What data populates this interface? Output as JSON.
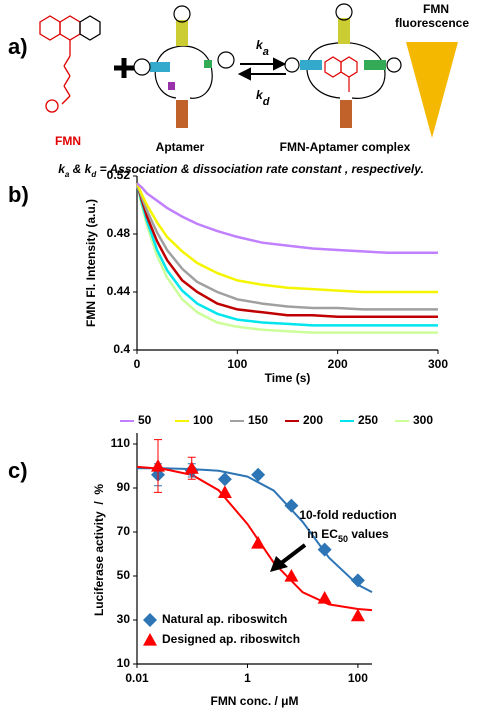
{
  "figure_a": {
    "label": "a)",
    "fmn": "FMN",
    "aptamer": "Aptamer",
    "complex": "FMN-Aptamer complex",
    "fluorescence": [
      "FMN",
      "fluorescence"
    ],
    "ka": [
      "k",
      "a"
    ],
    "kd": [
      "k",
      "d"
    ],
    "footnote": [
      "k",
      "a",
      " & ",
      "k",
      "d",
      " = Association & dissociation rate constant , respectively."
    ]
  },
  "chart_data": [
    {
      "type": "line",
      "panel_label": "b)",
      "xlabel": "Time (s)",
      "ylabel": "FMN Fl. Intensity (a.u.)",
      "x": [
        0,
        5,
        10,
        20,
        30,
        45,
        60,
        80,
        100,
        125,
        150,
        175,
        200,
        225,
        250,
        275,
        300
      ],
      "xlim": [
        0,
        300
      ],
      "xticks": [
        0,
        100,
        200,
        300
      ],
      "ylim": [
        0.4,
        0.52
      ],
      "yticks": [
        0.4,
        0.44,
        0.48,
        0.52
      ],
      "legend": "bottom",
      "series": [
        {
          "name": "50",
          "color": "#c080ff",
          "values": [
            0.515,
            0.512,
            0.508,
            0.503,
            0.498,
            0.492,
            0.487,
            0.482,
            0.478,
            0.474,
            0.472,
            0.47,
            0.469,
            0.468,
            0.467,
            0.467,
            0.467
          ]
        },
        {
          "name": "100",
          "color": "#f5f500",
          "values": [
            0.515,
            0.507,
            0.5,
            0.488,
            0.478,
            0.468,
            0.46,
            0.453,
            0.448,
            0.445,
            0.443,
            0.442,
            0.441,
            0.44,
            0.44,
            0.44,
            0.44
          ]
        },
        {
          "name": "150",
          "color": "#a0a0a0",
          "values": [
            0.515,
            0.505,
            0.496,
            0.481,
            0.469,
            0.456,
            0.447,
            0.44,
            0.435,
            0.432,
            0.43,
            0.429,
            0.429,
            0.428,
            0.428,
            0.428,
            0.428
          ]
        },
        {
          "name": "200",
          "color": "#c00000",
          "values": [
            0.515,
            0.503,
            0.492,
            0.475,
            0.462,
            0.448,
            0.44,
            0.432,
            0.428,
            0.426,
            0.424,
            0.424,
            0.423,
            0.423,
            0.423,
            0.423,
            0.423
          ]
        },
        {
          "name": "250",
          "color": "#00e5ee",
          "values": [
            0.515,
            0.501,
            0.489,
            0.469,
            0.455,
            0.441,
            0.432,
            0.425,
            0.421,
            0.419,
            0.418,
            0.417,
            0.417,
            0.417,
            0.417,
            0.417,
            0.417
          ]
        },
        {
          "name": "300",
          "color": "#ccff99",
          "values": [
            0.515,
            0.499,
            0.486,
            0.465,
            0.45,
            0.435,
            0.426,
            0.419,
            0.416,
            0.414,
            0.413,
            0.412,
            0.412,
            0.412,
            0.412,
            0.412,
            0.412
          ]
        }
      ]
    },
    {
      "type": "scatter",
      "panel_label": "c)",
      "xlabel": "FMN conc. / μM",
      "ylabel": "Luciferase activity  /  %",
      "x_scale": "log",
      "xlim": [
        0.01,
        180
      ],
      "xticks": [
        0.01,
        1,
        100
      ],
      "ylim": [
        10,
        115
      ],
      "yticks": [
        10,
        30,
        50,
        70,
        90,
        110
      ],
      "x": [
        0.024,
        0.098,
        0.39,
        1.56,
        6.25,
        25,
        100
      ],
      "fit_x": [
        0.01,
        0.03,
        0.1,
        0.3,
        1,
        3,
        10,
        30,
        100,
        180
      ],
      "annotation": [
        "10-fold reduction",
        "in EC",
        "50",
        " values"
      ],
      "legend": "lower left",
      "series": [
        {
          "name": "Natural ap. riboswitch",
          "color": "#2e75b6",
          "marker": "diamond",
          "values": [
            96,
            98,
            94,
            96,
            82,
            62,
            48
          ],
          "errors": [
            5,
            3,
            null,
            null,
            null,
            null,
            null
          ],
          "fit_values": [
            99,
            99,
            98.6,
            97.8,
            95.2,
            88.8,
            74.6,
            58.3,
            46.0,
            42.7
          ]
        },
        {
          "name": "Designed ap. riboswitch",
          "color": "#ff0000",
          "marker": "triangle",
          "values": [
            100,
            99,
            88,
            65,
            50,
            40,
            32
          ],
          "errors": [
            12,
            5,
            null,
            null,
            null,
            null,
            null
          ],
          "fit_values": [
            99.6,
            98.7,
            95.9,
            89,
            73.6,
            56,
            42.6,
            37.1,
            35,
            34.5
          ]
        }
      ]
    }
  ]
}
